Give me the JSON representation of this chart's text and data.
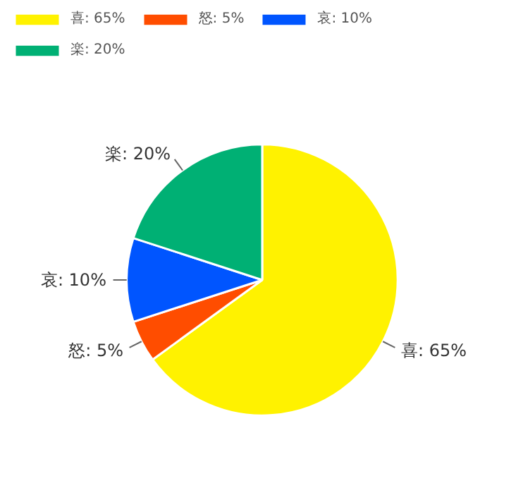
{
  "chart_data": {
    "type": "pie",
    "categories": [
      "喜: 65%",
      "怒: 5%",
      "哀: 10%",
      "楽: 20%"
    ],
    "values": [
      65,
      5,
      10,
      20
    ],
    "colors": [
      "#fff200",
      "#ff4d00",
      "#0055ff",
      "#00b074"
    ],
    "legend": "top left"
  }
}
